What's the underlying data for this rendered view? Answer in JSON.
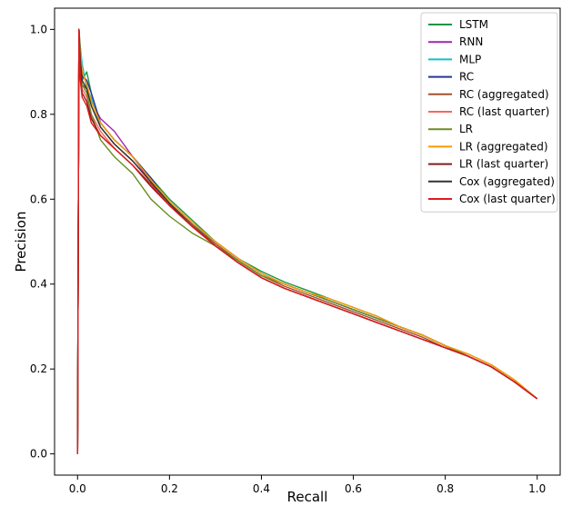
{
  "chart_data": {
    "type": "line",
    "title": "",
    "xlabel": "Recall",
    "ylabel": "Precision",
    "xlim": [
      -0.05,
      1.05
    ],
    "ylim": [
      -0.05,
      1.05
    ],
    "xticks": [
      "0.0",
      "0.2",
      "0.4",
      "0.6",
      "0.8",
      "1.0"
    ],
    "yticks": [
      "0.0",
      "0.2",
      "0.4",
      "0.6",
      "0.8",
      "1.0"
    ],
    "grid": false,
    "legend_position": "top-right",
    "series": [
      {
        "name": "LSTM",
        "color": "#1a9641",
        "x": [
          0,
          0.003,
          0.006,
          0.01,
          0.02,
          0.03,
          0.05,
          0.08,
          0.12,
          0.16,
          0.2,
          0.25,
          0.3,
          0.35,
          0.4,
          0.45,
          0.5,
          0.55,
          0.6,
          0.65,
          0.7,
          0.75,
          0.8,
          0.85,
          0.9,
          0.95,
          1.0
        ],
        "y": [
          0.0,
          1.0,
          0.95,
          0.88,
          0.9,
          0.85,
          0.78,
          0.74,
          0.7,
          0.65,
          0.6,
          0.55,
          0.5,
          0.46,
          0.43,
          0.405,
          0.385,
          0.365,
          0.345,
          0.325,
          0.3,
          0.28,
          0.255,
          0.235,
          0.21,
          0.175,
          0.13
        ]
      },
      {
        "name": "RNN",
        "color": "#9c27b0",
        "x": [
          0,
          0.003,
          0.006,
          0.01,
          0.02,
          0.03,
          0.05,
          0.08,
          0.12,
          0.16,
          0.2,
          0.25,
          0.3,
          0.35,
          0.4,
          0.45,
          0.5,
          0.55,
          0.6,
          0.65,
          0.7,
          0.75,
          0.8,
          0.85,
          0.9,
          0.95,
          1.0
        ],
        "y": [
          0.0,
          1.0,
          0.93,
          0.9,
          0.87,
          0.83,
          0.79,
          0.76,
          0.7,
          0.64,
          0.59,
          0.54,
          0.5,
          0.46,
          0.425,
          0.4,
          0.38,
          0.36,
          0.34,
          0.32,
          0.3,
          0.28,
          0.255,
          0.23,
          0.205,
          0.17,
          0.13
        ]
      },
      {
        "name": "MLP",
        "color": "#17becf",
        "x": [
          0,
          0.003,
          0.006,
          0.01,
          0.02,
          0.03,
          0.05,
          0.08,
          0.12,
          0.16,
          0.2,
          0.25,
          0.3,
          0.35,
          0.4,
          0.45,
          0.5,
          0.55,
          0.6,
          0.65,
          0.7,
          0.75,
          0.8,
          0.85,
          0.9,
          0.95,
          1.0
        ],
        "y": [
          0.0,
          1.0,
          0.96,
          0.92,
          0.86,
          0.84,
          0.77,
          0.73,
          0.69,
          0.64,
          0.59,
          0.54,
          0.5,
          0.46,
          0.425,
          0.4,
          0.38,
          0.36,
          0.34,
          0.32,
          0.3,
          0.28,
          0.255,
          0.23,
          0.205,
          0.17,
          0.13
        ]
      },
      {
        "name": "RC",
        "color": "#283593",
        "x": [
          0,
          0.003,
          0.006,
          0.01,
          0.02,
          0.03,
          0.05,
          0.08,
          0.12,
          0.16,
          0.2,
          0.25,
          0.3,
          0.35,
          0.4,
          0.45,
          0.5,
          0.55,
          0.6,
          0.65,
          0.7,
          0.75,
          0.8,
          0.85,
          0.9,
          0.95,
          1.0
        ],
        "y": [
          0.0,
          1.0,
          0.94,
          0.89,
          0.88,
          0.85,
          0.78,
          0.74,
          0.7,
          0.65,
          0.59,
          0.54,
          0.49,
          0.455,
          0.42,
          0.4,
          0.38,
          0.36,
          0.34,
          0.32,
          0.3,
          0.28,
          0.255,
          0.23,
          0.205,
          0.17,
          0.13
        ]
      },
      {
        "name": "RC (aggregated)",
        "color": "#a0522d",
        "x": [
          0,
          0.003,
          0.006,
          0.01,
          0.02,
          0.03,
          0.05,
          0.08,
          0.12,
          0.16,
          0.2,
          0.25,
          0.3,
          0.35,
          0.4,
          0.45,
          0.5,
          0.55,
          0.6,
          0.65,
          0.7,
          0.75,
          0.8,
          0.85,
          0.9,
          0.95,
          1.0
        ],
        "y": [
          0.0,
          1.0,
          0.92,
          0.87,
          0.86,
          0.82,
          0.77,
          0.73,
          0.69,
          0.64,
          0.59,
          0.54,
          0.495,
          0.455,
          0.42,
          0.395,
          0.375,
          0.355,
          0.335,
          0.315,
          0.295,
          0.275,
          0.25,
          0.23,
          0.205,
          0.17,
          0.13
        ]
      },
      {
        "name": "RC (last quarter)",
        "color": "#f06a5e",
        "x": [
          0,
          0.003,
          0.006,
          0.01,
          0.02,
          0.03,
          0.05,
          0.08,
          0.12,
          0.16,
          0.2,
          0.25,
          0.3,
          0.35,
          0.4,
          0.45,
          0.5,
          0.55,
          0.6,
          0.65,
          0.7,
          0.75,
          0.8,
          0.85,
          0.9,
          0.95,
          1.0
        ],
        "y": [
          0.0,
          1.0,
          0.9,
          0.86,
          0.84,
          0.8,
          0.76,
          0.72,
          0.68,
          0.63,
          0.585,
          0.535,
          0.49,
          0.45,
          0.415,
          0.39,
          0.37,
          0.35,
          0.33,
          0.31,
          0.29,
          0.27,
          0.25,
          0.23,
          0.205,
          0.17,
          0.13
        ]
      },
      {
        "name": "LR",
        "color": "#6b8e23",
        "x": [
          0,
          0.003,
          0.006,
          0.01,
          0.02,
          0.03,
          0.05,
          0.08,
          0.12,
          0.16,
          0.2,
          0.25,
          0.3,
          0.35,
          0.4,
          0.45,
          0.5,
          0.55,
          0.6,
          0.65,
          0.7,
          0.75,
          0.8,
          0.85,
          0.9,
          0.95,
          1.0
        ],
        "y": [
          0.0,
          1.0,
          0.91,
          0.87,
          0.85,
          0.8,
          0.74,
          0.7,
          0.66,
          0.6,
          0.56,
          0.52,
          0.49,
          0.455,
          0.42,
          0.4,
          0.38,
          0.36,
          0.34,
          0.32,
          0.3,
          0.28,
          0.255,
          0.23,
          0.205,
          0.17,
          0.13
        ]
      },
      {
        "name": "LR (aggregated)",
        "color": "#ff9800",
        "x": [
          0,
          0.003,
          0.006,
          0.01,
          0.02,
          0.03,
          0.05,
          0.08,
          0.12,
          0.16,
          0.2,
          0.25,
          0.3,
          0.35,
          0.4,
          0.45,
          0.5,
          0.55,
          0.6,
          0.65,
          0.7,
          0.75,
          0.8,
          0.85,
          0.9,
          0.95,
          1.0
        ],
        "y": [
          0.0,
          1.0,
          0.95,
          0.9,
          0.87,
          0.83,
          0.78,
          0.74,
          0.7,
          0.645,
          0.595,
          0.545,
          0.5,
          0.46,
          0.425,
          0.4,
          0.38,
          0.365,
          0.345,
          0.325,
          0.3,
          0.28,
          0.255,
          0.235,
          0.21,
          0.175,
          0.13
        ]
      },
      {
        "name": "LR (last quarter)",
        "color": "#7f1d1d",
        "x": [
          0,
          0.003,
          0.006,
          0.01,
          0.02,
          0.03,
          0.05,
          0.08,
          0.12,
          0.16,
          0.2,
          0.25,
          0.3,
          0.35,
          0.4,
          0.45,
          0.5,
          0.55,
          0.6,
          0.65,
          0.7,
          0.75,
          0.8,
          0.85,
          0.9,
          0.95,
          1.0
        ],
        "y": [
          0.0,
          1.0,
          0.89,
          0.85,
          0.83,
          0.79,
          0.75,
          0.72,
          0.68,
          0.63,
          0.585,
          0.535,
          0.49,
          0.45,
          0.415,
          0.39,
          0.37,
          0.35,
          0.33,
          0.31,
          0.29,
          0.27,
          0.25,
          0.23,
          0.205,
          0.17,
          0.13
        ]
      },
      {
        "name": "Cox (aggregated)",
        "color": "#333333",
        "x": [
          0,
          0.003,
          0.006,
          0.01,
          0.02,
          0.03,
          0.05,
          0.08,
          0.12,
          0.16,
          0.2,
          0.25,
          0.3,
          0.35,
          0.4,
          0.45,
          0.5,
          0.55,
          0.6,
          0.65,
          0.7,
          0.75,
          0.8,
          0.85,
          0.9,
          0.95,
          1.0
        ],
        "y": [
          0.0,
          1.0,
          0.93,
          0.88,
          0.86,
          0.82,
          0.77,
          0.73,
          0.69,
          0.64,
          0.59,
          0.535,
          0.49,
          0.45,
          0.415,
          0.39,
          0.37,
          0.35,
          0.33,
          0.31,
          0.29,
          0.27,
          0.25,
          0.23,
          0.205,
          0.17,
          0.13
        ]
      },
      {
        "name": "Cox (last quarter)",
        "color": "#e31a1c",
        "x": [
          0,
          0.003,
          0.006,
          0.01,
          0.02,
          0.03,
          0.05,
          0.08,
          0.12,
          0.16,
          0.2,
          0.25,
          0.3,
          0.35,
          0.4,
          0.45,
          0.5,
          0.55,
          0.6,
          0.65,
          0.7,
          0.75,
          0.8,
          0.85,
          0.9,
          0.95,
          1.0
        ],
        "y": [
          0.0,
          1.0,
          0.88,
          0.84,
          0.82,
          0.78,
          0.75,
          0.72,
          0.68,
          0.635,
          0.585,
          0.535,
          0.49,
          0.45,
          0.415,
          0.39,
          0.37,
          0.35,
          0.33,
          0.31,
          0.29,
          0.27,
          0.25,
          0.23,
          0.205,
          0.17,
          0.13
        ]
      }
    ]
  }
}
